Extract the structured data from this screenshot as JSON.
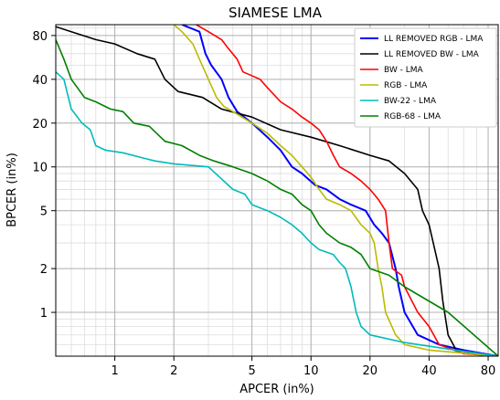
{
  "chart_data": {
    "type": "line",
    "title": "SIAMESE LMA",
    "xlabel": "APCER (in%)",
    "ylabel": "BPCER (in%)",
    "xscale": "log",
    "yscale": "log",
    "xlim": [
      0.5,
      90
    ],
    "ylim": [
      0.5,
      95
    ],
    "grid": true,
    "legend_position": "top-right",
    "x_ticks": [
      {
        "value": 1,
        "label": "1"
      },
      {
        "value": 2,
        "label": "2"
      },
      {
        "value": 5,
        "label": "5"
      },
      {
        "value": 10,
        "label": "10"
      },
      {
        "value": 20,
        "label": "20"
      },
      {
        "value": 40,
        "label": "40"
      },
      {
        "value": 80,
        "label": "80"
      }
    ],
    "y_ticks": [
      {
        "value": 1,
        "label": "1"
      },
      {
        "value": 2,
        "label": "2"
      },
      {
        "value": 5,
        "label": "5"
      },
      {
        "value": 10,
        "label": "10"
      },
      {
        "value": 20,
        "label": "20"
      },
      {
        "value": 40,
        "label": "40"
      },
      {
        "value": 80,
        "label": "80"
      }
    ],
    "series": [
      {
        "name": "LL REMOVED RGB - LMA",
        "color": "#0000ff",
        "width": 2,
        "points": [
          [
            2.2,
            95
          ],
          [
            2.7,
            85
          ],
          [
            2.9,
            60
          ],
          [
            3.1,
            50
          ],
          [
            3.5,
            40
          ],
          [
            3.8,
            30
          ],
          [
            4.2,
            24
          ],
          [
            5,
            20
          ],
          [
            6,
            16
          ],
          [
            7,
            13
          ],
          [
            8,
            10
          ],
          [
            9,
            9
          ],
          [
            10.5,
            7.5
          ],
          [
            12,
            7
          ],
          [
            14,
            6
          ],
          [
            16,
            5.5
          ],
          [
            19,
            5
          ],
          [
            21,
            4
          ],
          [
            23,
            3.5
          ],
          [
            25,
            3
          ],
          [
            27,
            2
          ],
          [
            28,
            1.5
          ],
          [
            30,
            1
          ],
          [
            35,
            0.7
          ],
          [
            45,
            0.6
          ],
          [
            60,
            0.55
          ],
          [
            90,
            0.5
          ]
        ]
      },
      {
        "name": "LL REMOVED BW - LMA",
        "color": "#000000",
        "width": 1.6,
        "points": [
          [
            0.5,
            92
          ],
          [
            0.6,
            85
          ],
          [
            0.8,
            75
          ],
          [
            1,
            70
          ],
          [
            1.3,
            60
          ],
          [
            1.6,
            55
          ],
          [
            1.8,
            40
          ],
          [
            2.1,
            33
          ],
          [
            2.8,
            30
          ],
          [
            3.5,
            25
          ],
          [
            5,
            22
          ],
          [
            7,
            18
          ],
          [
            10,
            16
          ],
          [
            14,
            14
          ],
          [
            20,
            12
          ],
          [
            25,
            11
          ],
          [
            30,
            9
          ],
          [
            35,
            7
          ],
          [
            37,
            5
          ],
          [
            40,
            4
          ],
          [
            42,
            3
          ],
          [
            45,
            2
          ],
          [
            47,
            1.2
          ],
          [
            50,
            0.7
          ],
          [
            55,
            0.55
          ],
          [
            70,
            0.52
          ],
          [
            90,
            0.5
          ]
        ]
      },
      {
        "name": "BW - LMA",
        "color": "#ff0000",
        "width": 1.6,
        "points": [
          [
            2.6,
            95
          ],
          [
            3,
            85
          ],
          [
            3.5,
            75
          ],
          [
            3.8,
            65
          ],
          [
            4.2,
            55
          ],
          [
            4.5,
            45
          ],
          [
            5.5,
            40
          ],
          [
            6,
            35
          ],
          [
            7,
            28
          ],
          [
            8,
            25
          ],
          [
            9,
            22
          ],
          [
            10,
            20
          ],
          [
            11,
            18
          ],
          [
            12,
            15
          ],
          [
            13,
            12
          ],
          [
            14,
            10
          ],
          [
            16,
            9
          ],
          [
            18,
            8
          ],
          [
            20,
            7
          ],
          [
            22,
            6
          ],
          [
            24,
            5
          ],
          [
            25,
            3
          ],
          [
            26,
            2
          ],
          [
            29,
            1.8
          ],
          [
            30,
            1.5
          ],
          [
            35,
            1
          ],
          [
            40,
            0.8
          ],
          [
            45,
            0.6
          ],
          [
            60,
            0.52
          ],
          [
            90,
            0.5
          ]
        ]
      },
      {
        "name": "RGB - LMA",
        "color": "#bbbb00",
        "width": 1.6,
        "points": [
          [
            2,
            95
          ],
          [
            2.2,
            85
          ],
          [
            2.5,
            70
          ],
          [
            2.7,
            55
          ],
          [
            3,
            40
          ],
          [
            3.3,
            30
          ],
          [
            3.6,
            26
          ],
          [
            4,
            24
          ],
          [
            5,
            20
          ],
          [
            6,
            17
          ],
          [
            7,
            14
          ],
          [
            8,
            12
          ],
          [
            9,
            10
          ],
          [
            10,
            8.5
          ],
          [
            11,
            7
          ],
          [
            12,
            6
          ],
          [
            14,
            5.5
          ],
          [
            16,
            5
          ],
          [
            18,
            4
          ],
          [
            20,
            3.5
          ],
          [
            21,
            3
          ],
          [
            22,
            2
          ],
          [
            23,
            1.5
          ],
          [
            24,
            1
          ],
          [
            27,
            0.7
          ],
          [
            30,
            0.6
          ],
          [
            40,
            0.55
          ],
          [
            90,
            0.5
          ]
        ]
      },
      {
        "name": "BW-22 - LMA",
        "color": "#00bbbb",
        "width": 1.6,
        "points": [
          [
            0.5,
            45
          ],
          [
            0.55,
            40
          ],
          [
            0.6,
            25
          ],
          [
            0.68,
            20
          ],
          [
            0.75,
            18
          ],
          [
            0.8,
            14
          ],
          [
            0.9,
            13
          ],
          [
            1.1,
            12.5
          ],
          [
            1.4,
            11.5
          ],
          [
            1.6,
            11
          ],
          [
            2,
            10.5
          ],
          [
            3,
            10
          ],
          [
            4,
            7
          ],
          [
            4.6,
            6.5
          ],
          [
            5,
            5.5
          ],
          [
            6,
            5
          ],
          [
            7,
            4.5
          ],
          [
            8,
            4
          ],
          [
            9,
            3.5
          ],
          [
            10,
            3
          ],
          [
            11,
            2.7
          ],
          [
            13,
            2.5
          ],
          [
            14,
            2.2
          ],
          [
            15,
            2
          ],
          [
            16,
            1.5
          ],
          [
            17,
            1
          ],
          [
            18,
            0.8
          ],
          [
            20,
            0.7
          ],
          [
            30,
            0.62
          ],
          [
            50,
            0.56
          ],
          [
            90,
            0.5
          ]
        ]
      },
      {
        "name": "RGB-68 - LMA",
        "color": "#008000",
        "width": 1.6,
        "points": [
          [
            0.5,
            75
          ],
          [
            0.55,
            55
          ],
          [
            0.6,
            40
          ],
          [
            0.7,
            30
          ],
          [
            0.8,
            28
          ],
          [
            0.95,
            25
          ],
          [
            1.1,
            24
          ],
          [
            1.25,
            20
          ],
          [
            1.5,
            19
          ],
          [
            1.8,
            15
          ],
          [
            2.2,
            14
          ],
          [
            2.7,
            12
          ],
          [
            3.2,
            11
          ],
          [
            4,
            10
          ],
          [
            5,
            9
          ],
          [
            6,
            8
          ],
          [
            7,
            7
          ],
          [
            8,
            6.5
          ],
          [
            9,
            5.5
          ],
          [
            10,
            5
          ],
          [
            11,
            4
          ],
          [
            12,
            3.5
          ],
          [
            14,
            3
          ],
          [
            16,
            2.8
          ],
          [
            18,
            2.5
          ],
          [
            20,
            2
          ],
          [
            25,
            1.8
          ],
          [
            30,
            1.5
          ],
          [
            50,
            1
          ],
          [
            90,
            0.5
          ]
        ]
      }
    ]
  }
}
